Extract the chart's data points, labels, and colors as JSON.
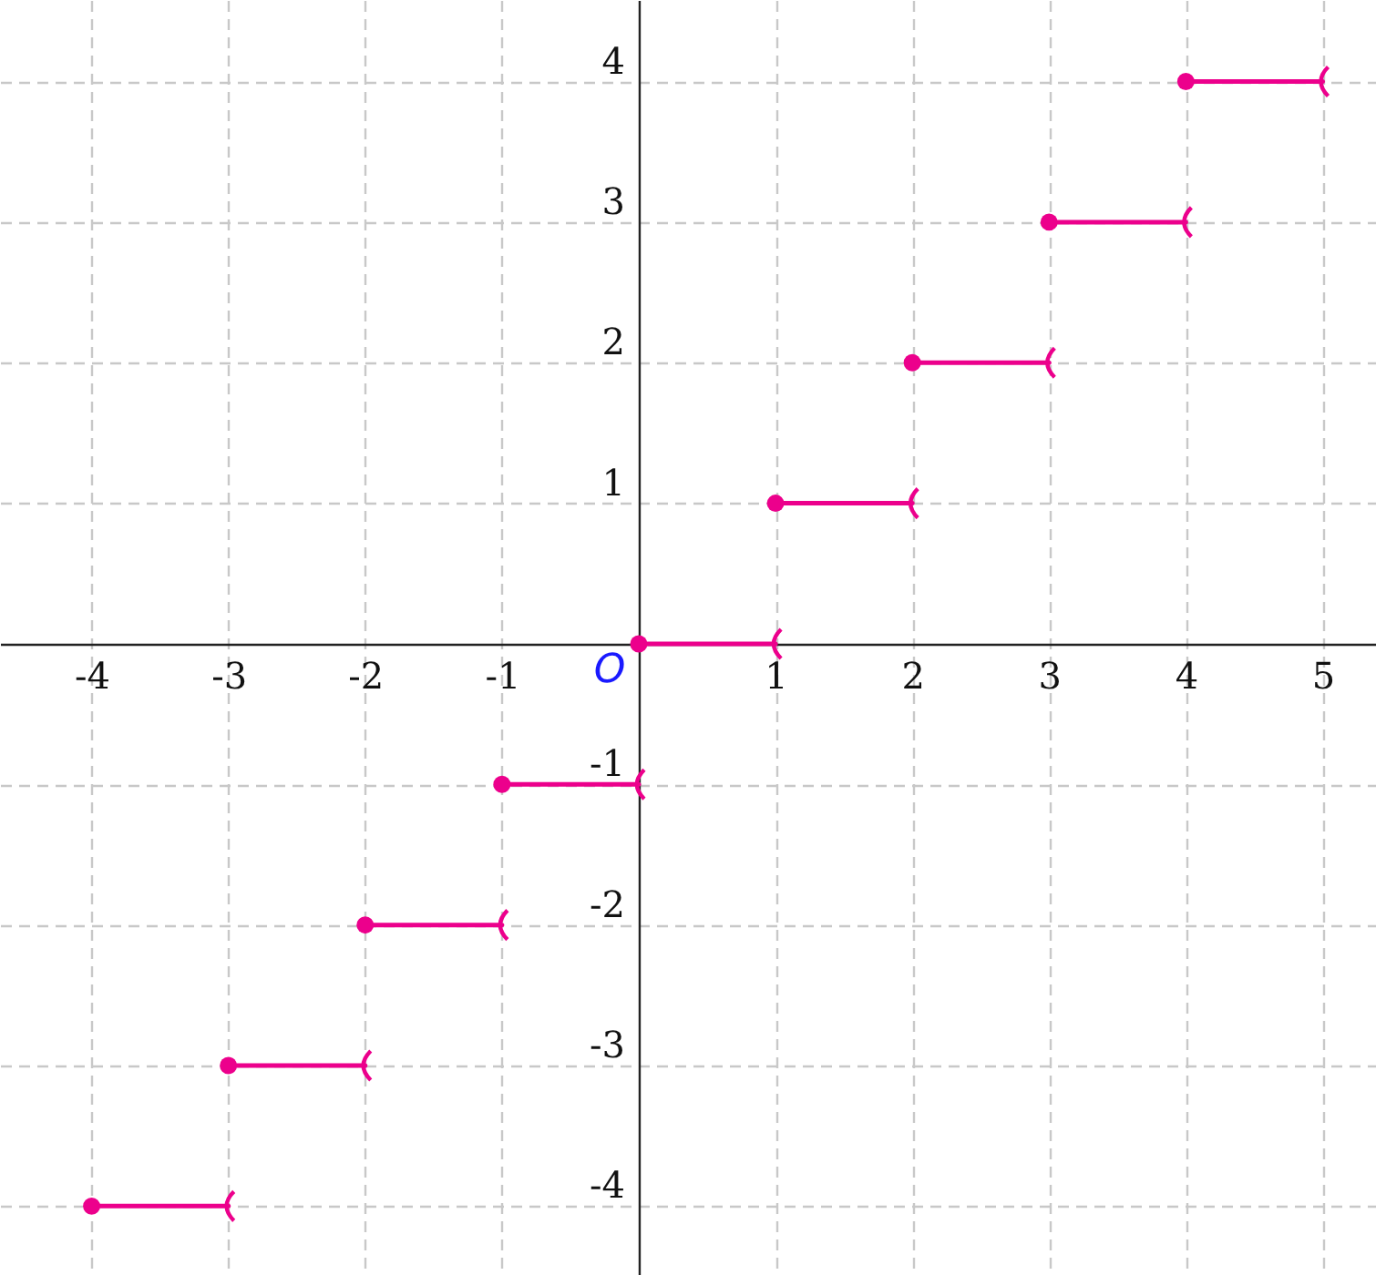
{
  "chart_data": {
    "type": "line",
    "xlim": [
      -4.67,
      5.39
    ],
    "ylim": [
      -4.49,
      4.58
    ],
    "xticks": [
      -4,
      -3,
      -2,
      -1,
      1,
      2,
      3,
      4,
      5
    ],
    "yticks": [
      -4,
      -3,
      -2,
      -1,
      1,
      2,
      3,
      4
    ],
    "grid": true,
    "marker": "circle",
    "line_style": "solid",
    "annotations": [
      {
        "text": "O",
        "x": 0,
        "y": 0
      }
    ],
    "series": [
      {
        "color": "#ec008c",
        "x": [
          -4,
          -3
        ],
        "values": [
          -4,
          -4
        ]
      },
      {
        "color": "#ec008c",
        "x": [
          -3,
          -2
        ],
        "values": [
          -3,
          -3
        ]
      },
      {
        "color": "#ec008c",
        "x": [
          -2,
          -1
        ],
        "values": [
          -2,
          -2
        ]
      },
      {
        "color": "#ec008c",
        "x": [
          -1,
          0
        ],
        "values": [
          -1,
          -1
        ]
      },
      {
        "color": "#ec008c",
        "x": [
          0,
          1
        ],
        "values": [
          0,
          0
        ]
      },
      {
        "color": "#ec008c",
        "x": [
          1,
          2
        ],
        "values": [
          1,
          1
        ]
      },
      {
        "color": "#ec008c",
        "x": [
          2,
          3
        ],
        "values": [
          2,
          2
        ]
      },
      {
        "color": "#ec008c",
        "x": [
          3,
          4
        ],
        "values": [
          3,
          3
        ]
      },
      {
        "color": "#ec008c",
        "x": [
          4,
          5
        ],
        "values": [
          4,
          4
        ]
      }
    ]
  }
}
